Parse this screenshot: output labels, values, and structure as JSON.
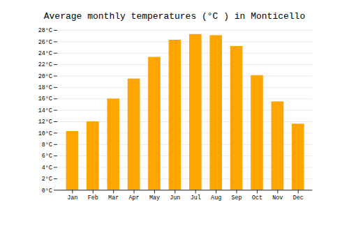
{
  "chart_data": {
    "type": "bar",
    "title": "Average monthly temperatures (°C ) in Monticello",
    "categories": [
      "Jan",
      "Feb",
      "Mar",
      "Apr",
      "May",
      "Jun",
      "Jul",
      "Aug",
      "Sep",
      "Oct",
      "Nov",
      "Dec"
    ],
    "values": [
      10.3,
      12.0,
      16.0,
      19.5,
      23.3,
      26.3,
      27.3,
      27.1,
      25.2,
      20.1,
      15.5,
      11.6
    ],
    "color": "#FFA500",
    "ylim": [
      0,
      28
    ],
    "yticks": [
      {
        "value": 0,
        "label": "0°C"
      },
      {
        "value": 2,
        "label": "2°C"
      },
      {
        "value": 4,
        "label": "4°C"
      },
      {
        "value": 6,
        "label": "6°C"
      },
      {
        "value": 8,
        "label": "8°C"
      },
      {
        "value": 10,
        "label": "10°C"
      },
      {
        "value": 12,
        "label": "12°C"
      },
      {
        "value": 14,
        "label": "14°C"
      },
      {
        "value": 16,
        "label": "16°C"
      },
      {
        "value": 18,
        "label": "18°C"
      },
      {
        "value": 20,
        "label": "20°C"
      },
      {
        "value": 22,
        "label": "22°C"
      },
      {
        "value": 24,
        "label": "24°C"
      },
      {
        "value": 26,
        "label": "26°C"
      },
      {
        "value": 28,
        "label": "28°C"
      }
    ],
    "grid": true
  }
}
